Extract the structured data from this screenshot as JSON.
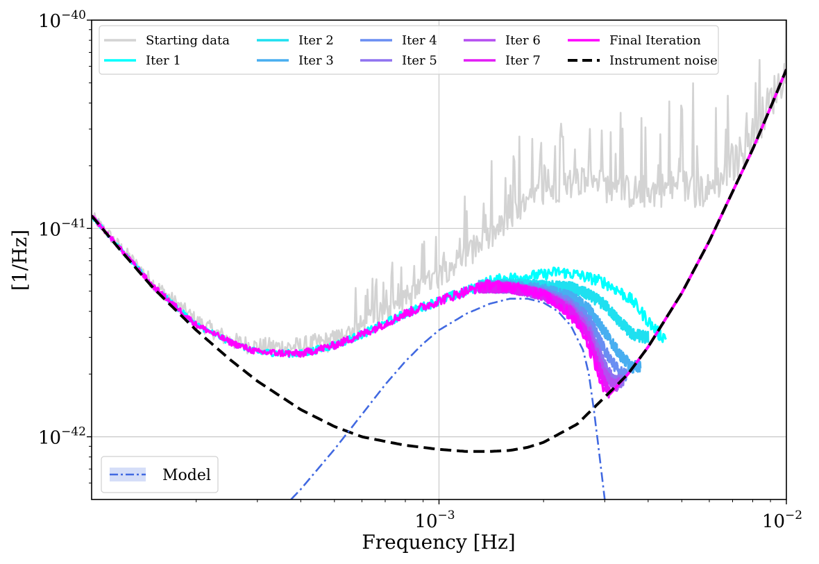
{
  "chart_data": {
    "type": "line",
    "xlabel": "Frequency [Hz]",
    "ylabel": "[1/Hz]",
    "xscale": "log",
    "yscale": "log",
    "xlim": [
      0.0001,
      0.01
    ],
    "ylim": [
      5e-43,
      1e-40
    ],
    "grid": "major",
    "x_ticks": [
      {
        "value": 0.001,
        "base": "10",
        "exp": "−3"
      },
      {
        "value": 0.01,
        "base": "10",
        "exp": "−2"
      }
    ],
    "y_ticks": [
      {
        "value": 1e-42,
        "base": "10",
        "exp": "−42"
      },
      {
        "value": 1e-41,
        "base": "10",
        "exp": "−41"
      },
      {
        "value": 1e-40,
        "base": "10",
        "exp": "−40"
      }
    ],
    "legend_main": {
      "placement": "top",
      "entries": [
        {
          "name": "Starting data",
          "color": "#d3d3d3",
          "dash": "solid"
        },
        {
          "name": "Iter 1",
          "color": "#00ffff",
          "dash": "solid"
        },
        {
          "name": "Iter 2",
          "color": "#1fe0f0",
          "dash": "solid"
        },
        {
          "name": "Iter 3",
          "color": "#48aef0",
          "dash": "solid"
        },
        {
          "name": "Iter 4",
          "color": "#6a8ef2",
          "dash": "solid"
        },
        {
          "name": "Iter 5",
          "color": "#8f72f0",
          "dash": "solid"
        },
        {
          "name": "Iter 6",
          "color": "#b54ef0",
          "dash": "solid"
        },
        {
          "name": "Iter 7",
          "color": "#e21cf5",
          "dash": "solid"
        },
        {
          "name": "Final Iteration",
          "color": "#ff00ff",
          "dash": "solid"
        },
        {
          "name": "Instrument noise",
          "color": "#000000",
          "dash": "dashed"
        }
      ]
    },
    "legend_model": {
      "placement": "bottom-left",
      "entries": [
        {
          "name": "Model",
          "color": "#4169e1",
          "dash": "dashdot"
        }
      ]
    },
    "series": [
      {
        "name": "Starting data",
        "color": "#d3d3d3",
        "style": "noisy",
        "x": [
          0.0001,
          0.00015,
          0.0002,
          0.00025,
          0.0003,
          0.0004,
          0.0005,
          0.0006,
          0.0007,
          0.0008,
          0.0009,
          0.001,
          0.0012,
          0.0014,
          0.0016,
          0.0018,
          0.002,
          0.0025,
          0.003,
          0.0035,
          0.004,
          0.005,
          0.006,
          0.007,
          0.008,
          0.01
        ],
        "y": [
          1.15e-41,
          5.5e-42,
          3.6e-42,
          2.9e-42,
          2.7e-42,
          2.7e-42,
          2.9e-42,
          3.4e-42,
          4e-42,
          4.5e-42,
          5.2e-42,
          6e-42,
          7.5e-42,
          9e-42,
          1.1e-41,
          1.3e-41,
          1.5e-41,
          1.7e-41,
          1.6e-41,
          1.5e-41,
          1.5e-41,
          1.6e-41,
          1.5e-41,
          2e-41,
          2.8e-41,
          5.8e-41
        ]
      },
      {
        "name": "Iter 1",
        "color": "#00ffff",
        "style": "noisy",
        "x": [
          0.0001,
          0.00015,
          0.0002,
          0.00025,
          0.0003,
          0.0004,
          0.0005,
          0.0006,
          0.0007,
          0.0008,
          0.0009,
          0.001,
          0.0012,
          0.0014,
          0.0016,
          0.0018,
          0.002,
          0.0022,
          0.0025,
          0.0028,
          0.003,
          0.0033,
          0.0036,
          0.004,
          0.0043,
          0.0045
        ],
        "y": [
          1.15e-41,
          5.3e-42,
          3.45e-42,
          2.85e-42,
          2.55e-42,
          2.5e-42,
          2.75e-42,
          3.1e-42,
          3.5e-42,
          3.9e-42,
          4.2e-42,
          4.5e-42,
          5e-42,
          5.6e-42,
          5.8e-42,
          5.9e-42,
          6e-42,
          6.2e-42,
          6e-42,
          5.7e-42,
          5.5e-42,
          5e-42,
          4.5e-42,
          3.6e-42,
          3.1e-42,
          3e-42
        ]
      },
      {
        "name": "Iter 2",
        "color": "#1fe0f0",
        "style": "noisy",
        "x": [
          0.0013,
          0.0016,
          0.002,
          0.0024,
          0.0027,
          0.003,
          0.0033,
          0.0036,
          0.004
        ],
        "y": [
          5.3e-42,
          5.4e-42,
          5.3e-42,
          5.2e-42,
          4.8e-42,
          4.3e-42,
          3.6e-42,
          3.1e-42,
          3e-42
        ]
      },
      {
        "name": "Iter 3",
        "color": "#48aef0",
        "style": "noisy",
        "x": [
          0.0013,
          0.0016,
          0.002,
          0.0024,
          0.0027,
          0.003,
          0.0033,
          0.0036,
          0.0038
        ],
        "y": [
          5.3e-42,
          5.3e-42,
          5.1e-42,
          4.7e-42,
          4.1e-42,
          3.2e-42,
          2.5e-42,
          2.15e-42,
          2.2e-42
        ]
      },
      {
        "name": "Iter 4",
        "color": "#6a8ef2",
        "style": "noisy",
        "x": [
          0.0013,
          0.0016,
          0.002,
          0.0024,
          0.0027,
          0.003,
          0.0033,
          0.0035
        ],
        "y": [
          5.2e-42,
          5.2e-42,
          4.9e-42,
          4.4e-42,
          3.7e-42,
          2.6e-42,
          2.05e-42,
          1.95e-42
        ]
      },
      {
        "name": "Iter 5",
        "color": "#8f72f0",
        "style": "noisy",
        "x": [
          0.0013,
          0.0016,
          0.002,
          0.0024,
          0.0027,
          0.003,
          0.0032,
          0.0034
        ],
        "y": [
          5.2e-42,
          5.2e-42,
          4.85e-42,
          4.2e-42,
          3.4e-42,
          2.2e-42,
          1.85e-42,
          1.85e-42
        ]
      },
      {
        "name": "Iter 6",
        "color": "#b54ef0",
        "style": "noisy",
        "x": [
          0.0013,
          0.0016,
          0.002,
          0.0024,
          0.0027,
          0.003,
          0.0032,
          0.0033
        ],
        "y": [
          5.2e-42,
          5.2e-42,
          4.8e-42,
          4.1e-42,
          3.2e-42,
          2e-42,
          1.75e-42,
          1.8e-42
        ]
      },
      {
        "name": "Iter 7",
        "color": "#e21cf5",
        "style": "noisy",
        "x": [
          0.0013,
          0.0016,
          0.002,
          0.0024,
          0.0027,
          0.003,
          0.0031
        ],
        "y": [
          5.2e-42,
          5.2e-42,
          4.8e-42,
          4e-42,
          3e-42,
          1.8e-42,
          1.6e-42
        ]
      },
      {
        "name": "Final Iteration",
        "color": "#ff00ff",
        "style": "noisy",
        "x": [
          0.0001,
          0.00015,
          0.0002,
          0.00025,
          0.0003,
          0.0004,
          0.0005,
          0.0006,
          0.0007,
          0.0008,
          0.0009,
          0.001,
          0.0012,
          0.0014,
          0.0016,
          0.0018,
          0.002,
          0.0022,
          0.0024,
          0.0026,
          0.0028,
          0.003
        ],
        "y": [
          1.15e-41,
          5.3e-42,
          3.45e-42,
          2.85e-42,
          2.55e-42,
          2.5e-42,
          2.75e-42,
          3.1e-42,
          3.5e-42,
          3.9e-42,
          4.2e-42,
          4.5e-42,
          5e-42,
          5.4e-42,
          5.2e-42,
          5.1e-42,
          4.8e-42,
          4.3e-42,
          3.8e-42,
          3.2e-42,
          2.3e-42,
          1.6e-42
        ]
      },
      {
        "name": "Final Iteration",
        "color": "#ff00ff",
        "style": "dashed-overlay",
        "x": [
          0.0031,
          0.0035,
          0.004,
          0.005,
          0.006,
          0.007,
          0.008,
          0.009,
          0.01
        ],
        "y": [
          1.6e-42,
          2e-42,
          2.7e-42,
          4.9e-42,
          8.7e-42,
          1.5e-41,
          2.4e-41,
          3.8e-41,
          5.8e-41
        ]
      },
      {
        "name": "Instrument noise",
        "color": "#000000",
        "style": "dashed",
        "x": [
          0.0001,
          0.00012,
          0.00015,
          0.0002,
          0.00025,
          0.0003,
          0.0004,
          0.0005,
          0.0006,
          0.0007,
          0.0008,
          0.001,
          0.0012,
          0.0014,
          0.0016,
          0.0018,
          0.002,
          0.0025,
          0.003,
          0.0035,
          0.004,
          0.005,
          0.006,
          0.007,
          0.008,
          0.009,
          0.01
        ],
        "y": [
          1.15e-41,
          8e-42,
          5.2e-42,
          3.25e-42,
          2.35e-42,
          1.85e-42,
          1.35e-42,
          1.12e-42,
          1e-42,
          9.5e-43,
          9.1e-43,
          8.7e-43,
          8.5e-43,
          8.5e-43,
          8.6e-43,
          8.9e-43,
          9.4e-43,
          1.15e-42,
          1.55e-42,
          2e-42,
          2.7e-42,
          4.9e-42,
          8.7e-42,
          1.5e-41,
          2.4e-41,
          3.8e-41,
          5.8e-41
        ]
      },
      {
        "name": "Model",
        "color": "#4169e1",
        "style": "dashdot",
        "x": [
          0.000375,
          0.0004,
          0.0005,
          0.0006,
          0.0007,
          0.0008,
          0.0009,
          0.001,
          0.0012,
          0.0014,
          0.0016,
          0.0018,
          0.002,
          0.0022,
          0.0024,
          0.0026,
          0.0027,
          0.0028,
          0.0029,
          0.003
        ],
        "y": [
          5e-43,
          5.6e-43,
          8.7e-43,
          1.28e-42,
          1.78e-42,
          2.3e-42,
          2.8e-42,
          3.25e-42,
          3.9e-42,
          4.35e-42,
          4.6e-42,
          4.6e-42,
          4.4e-42,
          4e-42,
          3.4e-42,
          2.6e-42,
          2e-42,
          1.3e-42,
          8e-43,
          5e-43
        ]
      }
    ]
  }
}
